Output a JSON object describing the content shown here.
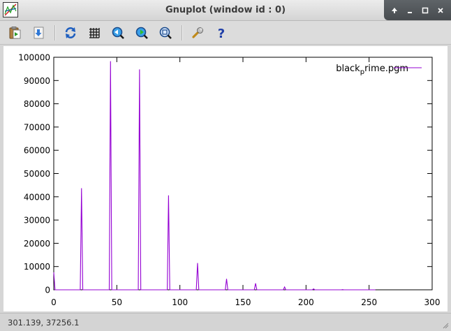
{
  "window": {
    "title": "Gnuplot (window id : 0)"
  },
  "title_buttons": [
    {
      "name": "keep-above-icon"
    },
    {
      "name": "minimize-icon"
    },
    {
      "name": "maximize-icon"
    },
    {
      "name": "close-icon"
    }
  ],
  "toolbar": [
    {
      "name": "copy-clipboard-icon"
    },
    {
      "name": "export-icon"
    },
    {
      "name": "replot-icon"
    },
    {
      "name": "grid-icon"
    },
    {
      "name": "zoom-previous-icon"
    },
    {
      "name": "zoom-next-icon"
    },
    {
      "name": "autoscale-icon"
    },
    {
      "name": "settings-wrench-icon"
    },
    {
      "name": "help-icon"
    }
  ],
  "status": {
    "coords": "301.139,  37256.1"
  },
  "colors": {
    "series": "#9400d3",
    "axis": "#000000"
  },
  "chart_data": {
    "type": "line",
    "title": "",
    "xlabel": "",
    "ylabel": "",
    "xlim": [
      0,
      300
    ],
    "ylim": [
      0,
      100000
    ],
    "xticks": [
      0,
      50,
      100,
      150,
      200,
      250,
      300
    ],
    "yticks": [
      0,
      10000,
      20000,
      30000,
      40000,
      50000,
      60000,
      70000,
      80000,
      90000,
      100000
    ],
    "grid": false,
    "legend_position": "top-right",
    "legend": {
      "base": "black",
      "subscript": "p",
      "suffix": "rime.pgm"
    },
    "series": [
      {
        "name": "black_prime.pgm",
        "color": "#9400d3",
        "points": [
          [
            0,
            7500
          ],
          [
            1,
            0
          ],
          [
            21,
            0
          ],
          [
            22,
            43700
          ],
          [
            23,
            0
          ],
          [
            44,
            0
          ],
          [
            45,
            98300
          ],
          [
            46,
            0
          ],
          [
            67,
            0
          ],
          [
            68,
            94800
          ],
          [
            69,
            0
          ],
          [
            90,
            0
          ],
          [
            91,
            40600
          ],
          [
            92,
            0
          ],
          [
            113,
            0
          ],
          [
            114,
            11500
          ],
          [
            115,
            0
          ],
          [
            136,
            0
          ],
          [
            137,
            4700
          ],
          [
            138,
            0
          ],
          [
            159,
            0
          ],
          [
            160,
            2800
          ],
          [
            161,
            0
          ],
          [
            182,
            0
          ],
          [
            183,
            1200
          ],
          [
            184,
            0
          ],
          [
            205,
            0
          ],
          [
            206,
            400
          ],
          [
            207,
            0
          ],
          [
            228,
            0
          ],
          [
            229,
            100
          ],
          [
            230,
            0
          ],
          [
            255,
            0
          ]
        ]
      }
    ]
  }
}
